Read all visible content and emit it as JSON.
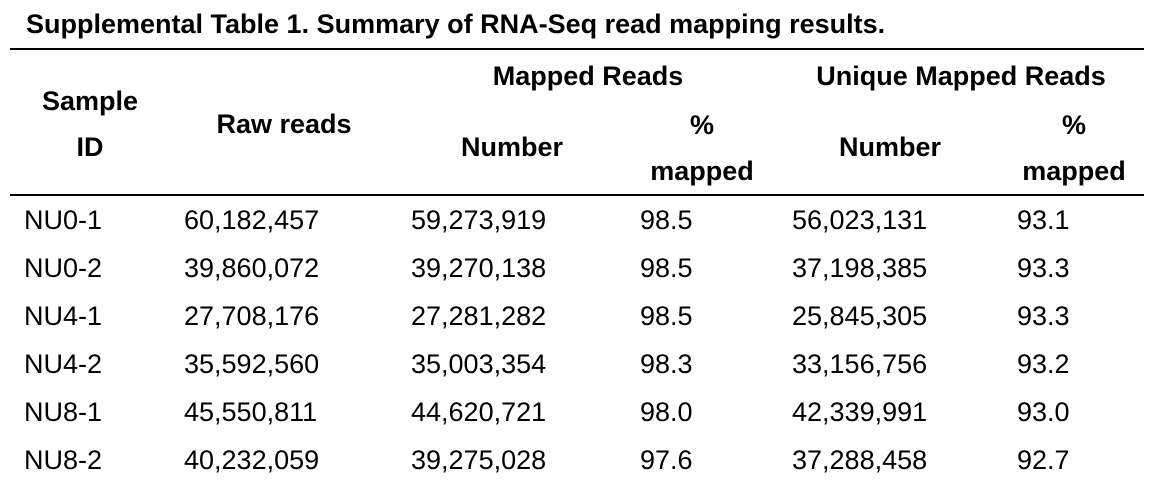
{
  "title": "Supplemental Table 1. Summary of RNA-Seq read mapping results.",
  "header": {
    "sample_id_line1": "Sample",
    "sample_id_line2": "ID",
    "raw_reads": "Raw reads",
    "mapped_reads": "Mapped Reads",
    "unique_mapped_reads": "Unique Mapped Reads",
    "number": "Number",
    "pct_line1": "%",
    "pct_line2": "mapped"
  },
  "rows": [
    {
      "sample": "NU0-1",
      "raw": "60,182,457",
      "mapped": "59,273,919",
      "mapped_pct": "98.5",
      "unique": "56,023,131",
      "unique_pct": "93.1"
    },
    {
      "sample": "NU0-2",
      "raw": "39,860,072",
      "mapped": "39,270,138",
      "mapped_pct": "98.5",
      "unique": "37,198,385",
      "unique_pct": "93.3"
    },
    {
      "sample": "NU4-1",
      "raw": "27,708,176",
      "mapped": "27,281,282",
      "mapped_pct": "98.5",
      "unique": "25,845,305",
      "unique_pct": "93.3"
    },
    {
      "sample": "NU4-2",
      "raw": "35,592,560",
      "mapped": "35,003,354",
      "mapped_pct": "98.3",
      "unique": "33,156,756",
      "unique_pct": "93.2"
    },
    {
      "sample": "NU8-1",
      "raw": "45,550,811",
      "mapped": "44,620,721",
      "mapped_pct": "98.0",
      "unique": "42,339,991",
      "unique_pct": "93.0"
    },
    {
      "sample": "NU8-2",
      "raw": "40,232,059",
      "mapped": "39,275,028",
      "mapped_pct": "97.6",
      "unique": "37,288,458",
      "unique_pct": "92.7"
    }
  ]
}
